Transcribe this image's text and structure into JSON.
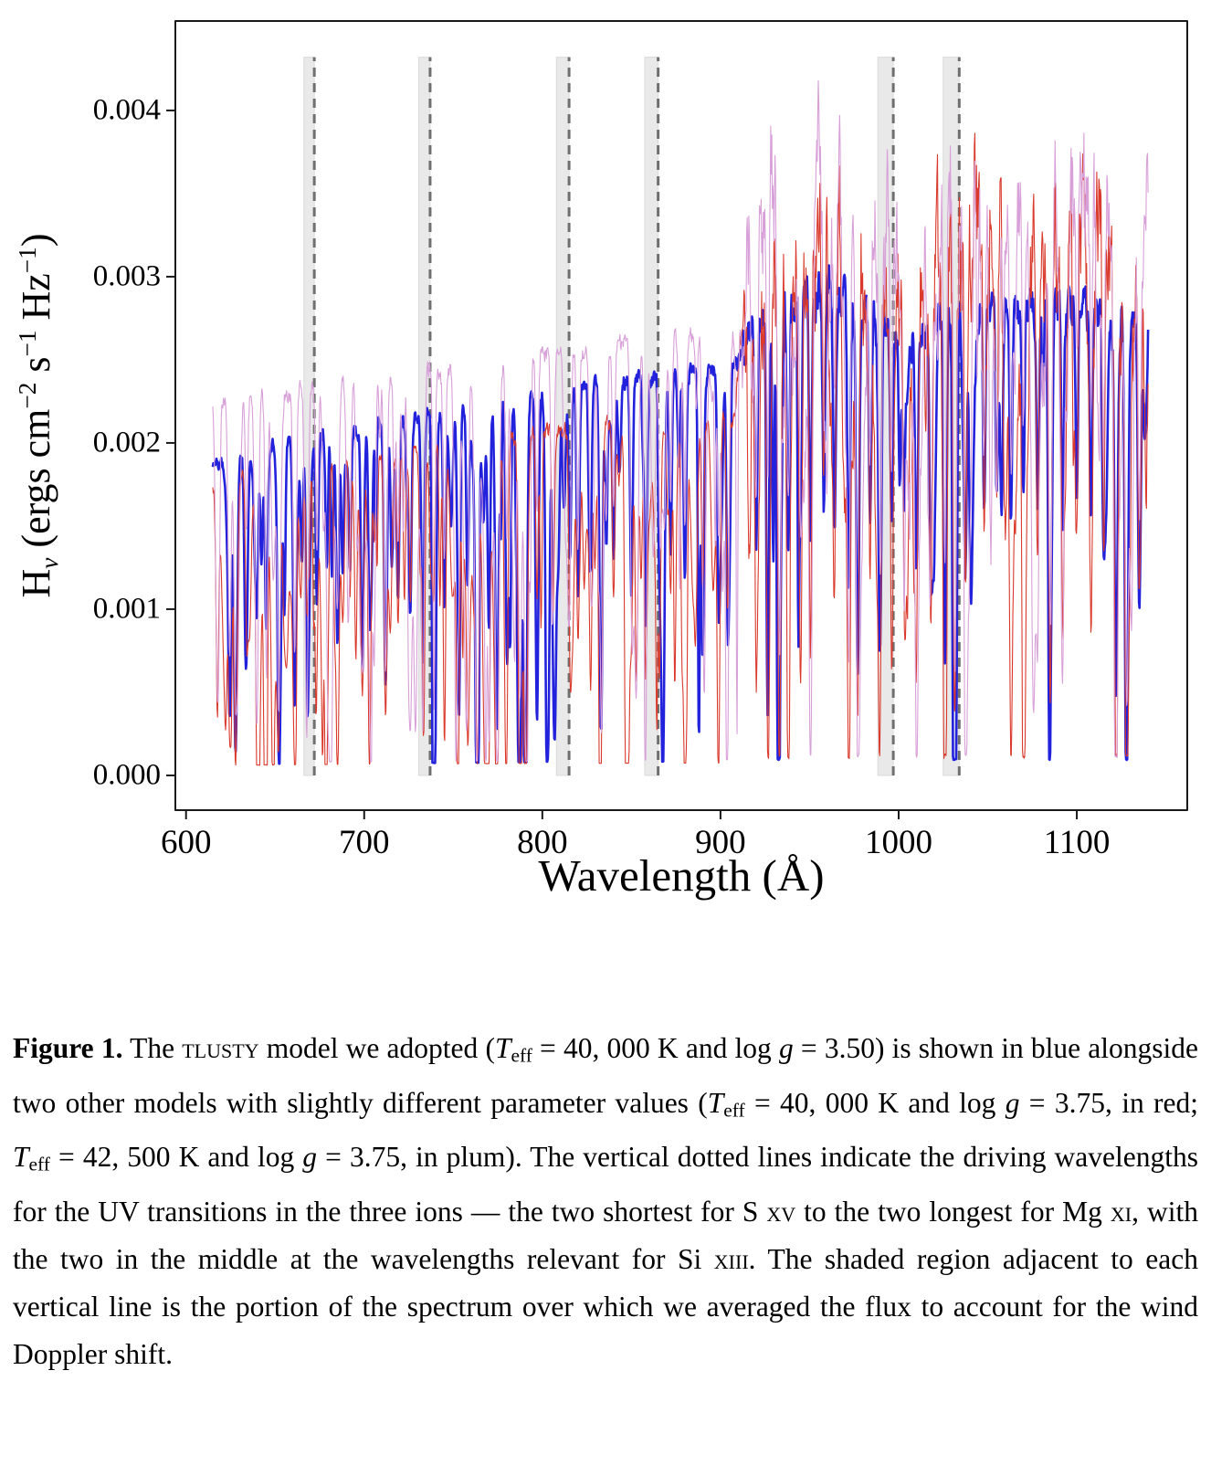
{
  "chart_data": {
    "type": "line",
    "title": "",
    "xlabel": "Wavelength (Å)",
    "ylabel_parts": [
      {
        "t": "H"
      },
      {
        "t": "ν",
        "s": "sub"
      },
      {
        "t": " (ergs cm"
      },
      {
        "t": "−2",
        "s": "sup"
      },
      {
        "t": " s"
      },
      {
        "t": "−1",
        "s": "sup"
      },
      {
        "t": " Hz"
      },
      {
        "t": "−1",
        "s": "sup"
      },
      {
        "t": ")"
      }
    ],
    "xlim": [
      594,
      1162
    ],
    "ylim": [
      -0.000209,
      0.004538
    ],
    "grid": false,
    "legend": "none",
    "xticks": {
      "values": [
        600,
        700,
        800,
        900,
        1000,
        1100
      ],
      "labels": [
        "600",
        "700",
        "800",
        "900",
        "1000",
        "1100"
      ]
    },
    "yticks": {
      "values": [
        0.0,
        0.001,
        0.002,
        0.003,
        0.004
      ],
      "labels": [
        "0.000",
        "0.001",
        "0.002",
        "0.003",
        "0.004"
      ]
    },
    "data_wavelength_range": [
      615,
      1140
    ],
    "lyman_jump_angstrom": 911,
    "vertical_lines": {
      "wavelengths": [
        672,
        737,
        815,
        865,
        997,
        1034
      ],
      "ions": [
        {
          "ion": "S XV",
          "wavelengths": [
            672,
            737
          ]
        },
        {
          "ion": "Si XIII",
          "wavelengths": [
            815,
            865
          ]
        },
        {
          "ion": "Mg XI",
          "wavelengths": [
            997,
            1034
          ]
        }
      ],
      "band_side": "short-wavelength",
      "band_width_fraction": 0.0087,
      "band_top_value": 0.00432,
      "line_color": "#6f6f6f",
      "band_color": "#e9e9e9"
    },
    "series": [
      {
        "name": "Teff = 40,000 K, log g = 3.50 (adopted)",
        "color": "#2222dd",
        "line_width": 2.6,
        "seed": 11,
        "major_scale": 1.0,
        "continuum": [
          [
            615,
            0.00186
          ],
          [
            650,
            0.002
          ],
          [
            700,
            0.0021
          ],
          [
            750,
            0.0022
          ],
          [
            800,
            0.00231
          ],
          [
            850,
            0.00238
          ],
          [
            880,
            0.00242
          ],
          [
            908,
            0.00245
          ],
          [
            914,
            0.00262
          ],
          [
            920,
            0.0027
          ],
          [
            935,
            0.00285
          ],
          [
            955,
            0.0029
          ],
          [
            975,
            0.00284
          ],
          [
            1000,
            0.00266
          ],
          [
            1010,
            0.00264
          ],
          [
            1030,
            0.0028
          ],
          [
            1050,
            0.00285
          ],
          [
            1075,
            0.00282
          ],
          [
            1100,
            0.0028
          ],
          [
            1120,
            0.00276
          ],
          [
            1140,
            0.00272
          ]
        ],
        "rough": [
          [
            594,
            912,
            0.016
          ],
          [
            912,
            1162,
            0.035
          ]
        ],
        "forest": [
          {
            "range": [
              615,
              912
            ],
            "density": 0.22,
            "depth": [
              0.08,
              0.55
            ],
            "width": [
              0.4,
              1.1
            ]
          },
          {
            "range": [
              912,
              1140
            ],
            "density": 0.1,
            "depth": [
              0.1,
              0.6
            ],
            "width": [
              0.4,
              1.0
            ]
          }
        ]
      },
      {
        "name": "Teff = 40,000 K, log g = 3.75 (red)",
        "color": "#da392b",
        "line_width": 1.1,
        "seed": 23,
        "major_scale": 1.08,
        "continuum": [
          [
            615,
            0.00177
          ],
          [
            650,
            0.00182
          ],
          [
            700,
            0.00193
          ],
          [
            750,
            0.002
          ],
          [
            800,
            0.00207
          ],
          [
            850,
            0.00211
          ],
          [
            880,
            0.00213
          ],
          [
            908,
            0.00215
          ],
          [
            914,
            0.0031
          ],
          [
            925,
            0.00325
          ],
          [
            940,
            0.00345
          ],
          [
            955,
            0.0036
          ],
          [
            970,
            0.0033
          ],
          [
            985,
            0.0032
          ],
          [
            1000,
            0.00292
          ],
          [
            1015,
            0.00322
          ],
          [
            1030,
            0.00332
          ],
          [
            1045,
            0.00345
          ],
          [
            1060,
            0.00336
          ],
          [
            1080,
            0.0033
          ],
          [
            1100,
            0.00338
          ],
          [
            1120,
            0.0033
          ],
          [
            1140,
            0.00333
          ]
        ],
        "rough": [
          [
            594,
            912,
            0.02
          ],
          [
            912,
            1162,
            0.1
          ]
        ],
        "forest": [
          {
            "range": [
              615,
              912
            ],
            "density": 0.35,
            "depth": [
              0.1,
              0.6
            ],
            "width": [
              0.4,
              1.2
            ]
          },
          {
            "range": [
              912,
              1140
            ],
            "density": 0.35,
            "depth": [
              0.05,
              0.35
            ],
            "width": [
              0.6,
              1.6
            ]
          }
        ]
      },
      {
        "name": "Teff = 42,500 K, log g = 3.75 (plum)",
        "color": "#d8a0d8",
        "line_width": 1.1,
        "seed": 37,
        "major_scale": 0.85,
        "continuum": [
          [
            615,
            0.00224
          ],
          [
            650,
            0.0023
          ],
          [
            700,
            0.00237
          ],
          [
            750,
            0.00245
          ],
          [
            800,
            0.00252
          ],
          [
            850,
            0.0026
          ],
          [
            880,
            0.00264
          ],
          [
            908,
            0.00268
          ],
          [
            914,
            0.0034
          ],
          [
            925,
            0.00355
          ],
          [
            935,
            0.0037
          ],
          [
            955,
            0.00385
          ],
          [
            975,
            0.0036
          ],
          [
            1000,
            0.00335
          ],
          [
            1020,
            0.00365
          ],
          [
            1045,
            0.00382
          ],
          [
            1070,
            0.00365
          ],
          [
            1100,
            0.00365
          ],
          [
            1125,
            0.00355
          ],
          [
            1140,
            0.0036
          ]
        ],
        "rough": [
          [
            594,
            912,
            0.018
          ],
          [
            912,
            1162,
            0.085
          ]
        ],
        "forest": [
          {
            "range": [
              615,
              912
            ],
            "density": 0.3,
            "depth": [
              0.1,
              0.6
            ],
            "width": [
              0.4,
              1.2
            ]
          },
          {
            "range": [
              912,
              1140
            ],
            "density": 0.35,
            "depth": [
              0.05,
              0.35
            ],
            "width": [
              0.6,
              1.6
            ]
          }
        ]
      }
    ],
    "major_absorption_lines": [
      [
        624.5,
        0.8
      ],
      [
        627.8,
        0.93
      ],
      [
        634.0,
        0.42
      ],
      [
        640.0,
        0.38
      ],
      [
        645.0,
        0.55
      ],
      [
        652.0,
        0.62
      ],
      [
        661.0,
        0.8
      ],
      [
        668.0,
        0.45
      ],
      [
        673.5,
        0.5
      ],
      [
        679.0,
        0.4
      ],
      [
        685.0,
        0.62
      ],
      [
        692.0,
        0.4
      ],
      [
        699.0,
        0.7
      ],
      [
        703.0,
        0.5
      ],
      [
        712.0,
        0.75
      ],
      [
        719.0,
        0.5
      ],
      [
        726.0,
        0.42
      ],
      [
        733.0,
        0.45
      ],
      [
        739.0,
        0.4
      ],
      [
        745.0,
        0.55
      ],
      [
        753.0,
        0.65
      ],
      [
        758.0,
        0.48
      ],
      [
        763.5,
        0.9
      ],
      [
        770.0,
        0.6
      ],
      [
        774.5,
        0.88
      ],
      [
        780.0,
        0.5
      ],
      [
        787.5,
        0.95
      ],
      [
        790.5,
        0.9
      ],
      [
        797.0,
        0.45
      ],
      [
        806.0,
        0.5
      ],
      [
        815.5,
        0.45
      ],
      [
        820.0,
        0.55
      ],
      [
        827.0,
        0.45
      ],
      [
        833.0,
        0.62
      ],
      [
        840.0,
        0.45
      ],
      [
        850.0,
        0.55
      ],
      [
        858.0,
        0.62
      ],
      [
        866.0,
        0.42
      ],
      [
        872.0,
        0.45
      ],
      [
        880.0,
        0.52
      ],
      [
        890.0,
        0.45
      ],
      [
        899.0,
        0.55
      ],
      [
        904.0,
        0.5
      ],
      [
        920.0,
        0.5
      ],
      [
        926.5,
        0.55
      ],
      [
        933.0,
        0.84
      ],
      [
        938.0,
        0.55
      ],
      [
        945.0,
        0.45
      ],
      [
        950.5,
        0.5
      ],
      [
        958.0,
        0.45
      ],
      [
        964.0,
        0.5
      ],
      [
        972.0,
        0.6
      ],
      [
        977.0,
        0.8
      ],
      [
        984.0,
        0.45
      ],
      [
        989.5,
        0.74
      ],
      [
        996.0,
        0.45
      ],
      [
        1003.0,
        0.4
      ],
      [
        1010.0,
        0.55
      ],
      [
        1018.0,
        0.45
      ],
      [
        1026.0,
        0.76
      ],
      [
        1031.5,
        0.82
      ],
      [
        1037.5,
        0.55
      ],
      [
        1048.0,
        0.45
      ],
      [
        1055.0,
        0.4
      ],
      [
        1063.0,
        0.45
      ],
      [
        1070.0,
        0.4
      ],
      [
        1078.0,
        0.45
      ],
      [
        1085.0,
        0.66
      ],
      [
        1092.0,
        0.45
      ],
      [
        1100.0,
        0.4
      ],
      [
        1108.0,
        0.45
      ],
      [
        1115.0,
        0.5
      ],
      [
        1122.0,
        0.82
      ],
      [
        1128.0,
        0.88
      ],
      [
        1135.0,
        0.55
      ]
    ],
    "render": {
      "sample_step": 0.3
    }
  },
  "caption": {
    "segments": [
      {
        "t": "Figure 1.",
        "s": "b"
      },
      {
        "t": " The ",
        "s": "n"
      },
      {
        "t": "tlusty",
        "s": "sc"
      },
      {
        "t": " model we adopted (",
        "s": "n"
      },
      {
        "t": "T",
        "s": "i"
      },
      {
        "t": "eff",
        "s": "sub"
      },
      {
        "t": " = 40, 000 K and log ",
        "s": "n"
      },
      {
        "t": "g",
        "s": "i"
      },
      {
        "t": " = 3.50) is shown in blue alongside two other models with slightly different parameter values (",
        "s": "n"
      },
      {
        "t": "T",
        "s": "i"
      },
      {
        "t": "eff",
        "s": "sub"
      },
      {
        "t": " = 40, 000 K and log ",
        "s": "n"
      },
      {
        "t": "g",
        "s": "i"
      },
      {
        "t": " = 3.75, in red; ",
        "s": "n"
      },
      {
        "t": "T",
        "s": "i"
      },
      {
        "t": "eff",
        "s": "sub"
      },
      {
        "t": " = 42, 500 K and log ",
        "s": "n"
      },
      {
        "t": "g",
        "s": "i"
      },
      {
        "t": " = 3.75, in plum). The vertical dotted lines indicate the driving wavelengths for the UV transitions in the three ions — the two shortest for S ",
        "s": "n"
      },
      {
        "t": "xv",
        "s": "sc"
      },
      {
        "t": " to the two longest for Mg ",
        "s": "n"
      },
      {
        "t": "xi",
        "s": "sc"
      },
      {
        "t": ", with the two in the middle at the wavelengths relevant for Si ",
        "s": "n"
      },
      {
        "t": "xiii",
        "s": "sc"
      },
      {
        "t": ". The shaded region adjacent to each vertical line is the portion of the spectrum over which we averaged the flux to account for the wind Doppler shift.",
        "s": "n"
      }
    ]
  }
}
